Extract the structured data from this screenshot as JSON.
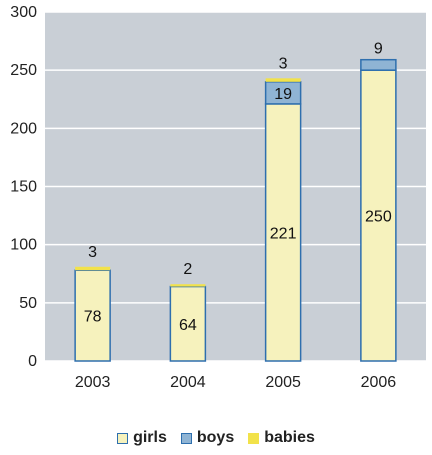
{
  "chart_data": {
    "type": "bar",
    "stacked": true,
    "categories": [
      "2003",
      "2004",
      "2005",
      "2006"
    ],
    "series": [
      {
        "name": "girls",
        "values": [
          78,
          64,
          221,
          250
        ],
        "color": "#f6f2bd"
      },
      {
        "name": "boys",
        "values": [
          0,
          0,
          19,
          9
        ],
        "color": "#8fb4d4"
      },
      {
        "name": "babies",
        "values": [
          3,
          2,
          3,
          0
        ],
        "color": "#f2e24a"
      }
    ],
    "data_labels": {
      "girls": [
        "78",
        "64",
        "221",
        "250"
      ],
      "boys": [
        "",
        "",
        "19",
        "9"
      ],
      "babies": [
        "3",
        "2",
        "3",
        ""
      ]
    },
    "ylim": [
      0,
      300
    ],
    "yticks": [
      "0",
      "50",
      "100",
      "150",
      "200",
      "250",
      "300"
    ],
    "grid": true,
    "plot_background": "#c9cfd6",
    "gridline_color": "#ffffff",
    "bar_border_color": "#2e6fae",
    "legend_position": "bottom"
  }
}
